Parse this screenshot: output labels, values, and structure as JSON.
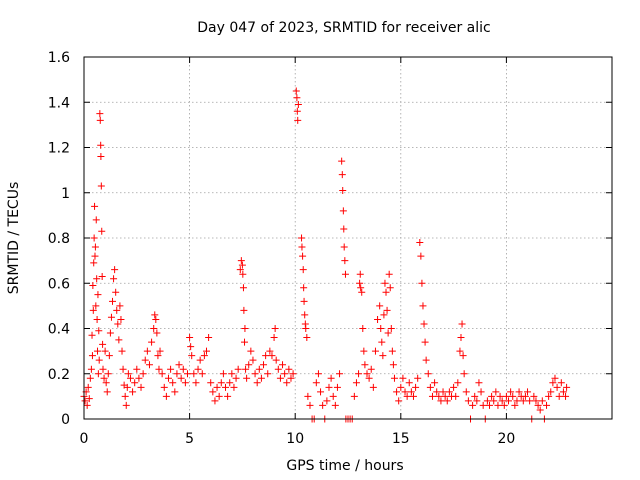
{
  "chart_data": {
    "type": "scatter",
    "title": "Day 047 of 2023, SRMTID for receiver alic",
    "xlabel": "GPS time / hours",
    "ylabel": "SRMTID / TECUs",
    "xlim": [
      0,
      25
    ],
    "ylim": [
      0,
      1.6
    ],
    "x_ticks": [
      0,
      5,
      10,
      15,
      20
    ],
    "x_tick_labels": [
      "0",
      "5",
      "10",
      "15",
      "20"
    ],
    "y_ticks": [
      0,
      0.2,
      0.4,
      0.6,
      0.8,
      1.0,
      1.2,
      1.4,
      1.6
    ],
    "y_tick_labels": [
      "0",
      "0.2",
      "0.4",
      "0.6",
      "0.8",
      "1",
      "1.2",
      "1.4",
      "1.6"
    ],
    "grid": true,
    "marker": "plus",
    "marker_color": "#ff0000",
    "series": [
      {
        "name": "SRMTID",
        "points": [
          [
            0.0,
            0.1
          ],
          [
            0.05,
            0.08
          ],
          [
            0.1,
            0.12
          ],
          [
            0.15,
            0.06
          ],
          [
            0.2,
            0.14
          ],
          [
            0.25,
            0.09
          ],
          [
            0.3,
            0.18
          ],
          [
            0.35,
            0.22
          ],
          [
            0.38,
            0.37
          ],
          [
            0.4,
            0.28
          ],
          [
            0.42,
            0.59
          ],
          [
            0.44,
            0.48
          ],
          [
            0.46,
            0.69
          ],
          [
            0.48,
            0.8
          ],
          [
            0.5,
            0.94
          ],
          [
            0.52,
            0.72
          ],
          [
            0.54,
            0.76
          ],
          [
            0.56,
            0.5
          ],
          [
            0.58,
            0.88
          ],
          [
            0.6,
            0.62
          ],
          [
            0.62,
            0.44
          ],
          [
            0.64,
            0.3
          ],
          [
            0.66,
            0.55
          ],
          [
            0.68,
            0.2
          ],
          [
            0.7,
            0.39
          ],
          [
            0.72,
            0.26
          ],
          [
            0.75,
            1.35
          ],
          [
            0.77,
            1.32
          ],
          [
            0.79,
            1.21
          ],
          [
            0.8,
            1.16
          ],
          [
            0.82,
            1.03
          ],
          [
            0.84,
            0.83
          ],
          [
            0.86,
            0.63
          ],
          [
            0.88,
            0.33
          ],
          [
            0.9,
            0.22
          ],
          [
            0.95,
            0.18
          ],
          [
            1.0,
            0.3
          ],
          [
            1.05,
            0.16
          ],
          [
            1.1,
            0.12
          ],
          [
            1.15,
            0.2
          ],
          [
            1.2,
            0.28
          ],
          [
            1.25,
            0.38
          ],
          [
            1.3,
            0.45
          ],
          [
            1.35,
            0.52
          ],
          [
            1.4,
            0.62
          ],
          [
            1.45,
            0.66
          ],
          [
            1.5,
            0.56
          ],
          [
            1.55,
            0.48
          ],
          [
            1.6,
            0.42
          ],
          [
            1.65,
            0.35
          ],
          [
            1.7,
            0.5
          ],
          [
            1.75,
            0.44
          ],
          [
            1.8,
            0.3
          ],
          [
            1.85,
            0.22
          ],
          [
            1.9,
            0.15
          ],
          [
            1.95,
            0.1
          ],
          [
            2.0,
            0.06
          ],
          [
            2.05,
            0.14
          ],
          [
            2.1,
            0.2
          ],
          [
            2.2,
            0.18
          ],
          [
            2.3,
            0.12
          ],
          [
            2.4,
            0.16
          ],
          [
            2.5,
            0.22
          ],
          [
            2.6,
            0.18
          ],
          [
            2.7,
            0.14
          ],
          [
            2.8,
            0.2
          ],
          [
            2.9,
            0.26
          ],
          [
            3.0,
            0.3
          ],
          [
            3.1,
            0.24
          ],
          [
            3.2,
            0.34
          ],
          [
            3.3,
            0.4
          ],
          [
            3.35,
            0.46
          ],
          [
            3.4,
            0.44
          ],
          [
            3.45,
            0.38
          ],
          [
            3.5,
            0.28
          ],
          [
            3.55,
            0.22
          ],
          [
            3.6,
            0.3
          ],
          [
            3.7,
            0.2
          ],
          [
            3.8,
            0.14
          ],
          [
            3.9,
            0.1
          ],
          [
            4.0,
            0.18
          ],
          [
            4.1,
            0.22
          ],
          [
            4.2,
            0.16
          ],
          [
            4.3,
            0.12
          ],
          [
            4.4,
            0.2
          ],
          [
            4.5,
            0.24
          ],
          [
            4.6,
            0.18
          ],
          [
            4.7,
            0.22
          ],
          [
            4.8,
            0.16
          ],
          [
            4.9,
            0.2
          ],
          [
            5.0,
            0.36
          ],
          [
            5.05,
            0.32
          ],
          [
            5.1,
            0.28
          ],
          [
            5.2,
            0.2
          ],
          [
            5.3,
            0.16
          ],
          [
            5.4,
            0.22
          ],
          [
            5.5,
            0.26
          ],
          [
            5.6,
            0.2
          ],
          [
            5.7,
            0.28
          ],
          [
            5.8,
            0.3
          ],
          [
            5.9,
            0.36
          ],
          [
            6.0,
            0.16
          ],
          [
            6.1,
            0.12
          ],
          [
            6.2,
            0.08
          ],
          [
            6.3,
            0.14
          ],
          [
            6.4,
            0.1
          ],
          [
            6.5,
            0.16
          ],
          [
            6.6,
            0.2
          ],
          [
            6.7,
            0.14
          ],
          [
            6.8,
            0.1
          ],
          [
            6.9,
            0.16
          ],
          [
            7.0,
            0.2
          ],
          [
            7.1,
            0.14
          ],
          [
            7.2,
            0.18
          ],
          [
            7.3,
            0.22
          ],
          [
            7.4,
            0.66
          ],
          [
            7.45,
            0.7
          ],
          [
            7.5,
            0.68
          ],
          [
            7.52,
            0.64
          ],
          [
            7.55,
            0.58
          ],
          [
            7.57,
            0.48
          ],
          [
            7.6,
            0.34
          ],
          [
            7.62,
            0.4
          ],
          [
            7.65,
            0.22
          ],
          [
            7.7,
            0.18
          ],
          [
            7.8,
            0.24
          ],
          [
            7.9,
            0.3
          ],
          [
            8.0,
            0.26
          ],
          [
            8.1,
            0.2
          ],
          [
            8.2,
            0.16
          ],
          [
            8.3,
            0.22
          ],
          [
            8.4,
            0.18
          ],
          [
            8.5,
            0.24
          ],
          [
            8.6,
            0.28
          ],
          [
            8.7,
            0.2
          ],
          [
            8.8,
            0.3
          ],
          [
            8.9,
            0.28
          ],
          [
            9.0,
            0.36
          ],
          [
            9.05,
            0.4
          ],
          [
            9.1,
            0.26
          ],
          [
            9.2,
            0.22
          ],
          [
            9.3,
            0.18
          ],
          [
            9.4,
            0.24
          ],
          [
            9.5,
            0.2
          ],
          [
            9.6,
            0.16
          ],
          [
            9.7,
            0.22
          ],
          [
            9.8,
            0.18
          ],
          [
            9.9,
            0.2
          ],
          [
            10.05,
            1.45
          ],
          [
            10.08,
            1.42
          ],
          [
            10.1,
            1.36
          ],
          [
            10.12,
            1.32
          ],
          [
            10.15,
            1.39
          ],
          [
            10.3,
            0.8
          ],
          [
            10.32,
            0.76
          ],
          [
            10.35,
            0.72
          ],
          [
            10.38,
            0.66
          ],
          [
            10.4,
            0.58
          ],
          [
            10.42,
            0.52
          ],
          [
            10.45,
            0.46
          ],
          [
            10.48,
            0.42
          ],
          [
            10.5,
            0.4
          ],
          [
            10.55,
            0.36
          ],
          [
            10.6,
            0.1
          ],
          [
            10.7,
            0.06
          ],
          [
            10.8,
            0.0
          ],
          [
            10.9,
            0.0
          ],
          [
            11.0,
            0.16
          ],
          [
            11.1,
            0.2
          ],
          [
            11.2,
            0.12
          ],
          [
            11.3,
            0.06
          ],
          [
            11.4,
            0.0
          ],
          [
            11.5,
            0.08
          ],
          [
            11.6,
            0.14
          ],
          [
            11.7,
            0.18
          ],
          [
            11.8,
            0.1
          ],
          [
            11.9,
            0.06
          ],
          [
            12.0,
            0.14
          ],
          [
            12.1,
            0.2
          ],
          [
            12.2,
            1.14
          ],
          [
            12.23,
            1.08
          ],
          [
            12.25,
            1.01
          ],
          [
            12.28,
            0.92
          ],
          [
            12.3,
            0.84
          ],
          [
            12.32,
            0.76
          ],
          [
            12.35,
            0.7
          ],
          [
            12.38,
            0.64
          ],
          [
            12.4,
            0.0
          ],
          [
            12.5,
            0.0
          ],
          [
            12.6,
            0.0
          ],
          [
            12.7,
            0.0
          ],
          [
            12.8,
            0.1
          ],
          [
            12.9,
            0.16
          ],
          [
            13.0,
            0.2
          ],
          [
            13.05,
            0.6
          ],
          [
            13.08,
            0.64
          ],
          [
            13.1,
            0.58
          ],
          [
            13.15,
            0.56
          ],
          [
            13.2,
            0.4
          ],
          [
            13.25,
            0.3
          ],
          [
            13.3,
            0.24
          ],
          [
            13.4,
            0.2
          ],
          [
            13.5,
            0.18
          ],
          [
            13.6,
            0.22
          ],
          [
            13.7,
            0.14
          ],
          [
            13.8,
            0.3
          ],
          [
            13.9,
            0.44
          ],
          [
            14.0,
            0.5
          ],
          [
            14.05,
            0.4
          ],
          [
            14.1,
            0.34
          ],
          [
            14.15,
            0.28
          ],
          [
            14.2,
            0.46
          ],
          [
            14.25,
            0.6
          ],
          [
            14.3,
            0.56
          ],
          [
            14.35,
            0.48
          ],
          [
            14.4,
            0.38
          ],
          [
            14.45,
            0.64
          ],
          [
            14.5,
            0.58
          ],
          [
            14.55,
            0.4
          ],
          [
            14.6,
            0.3
          ],
          [
            14.65,
            0.24
          ],
          [
            14.7,
            0.18
          ],
          [
            14.8,
            0.12
          ],
          [
            14.9,
            0.08
          ],
          [
            15.0,
            0.14
          ],
          [
            15.1,
            0.18
          ],
          [
            15.2,
            0.12
          ],
          [
            15.3,
            0.1
          ],
          [
            15.4,
            0.16
          ],
          [
            15.5,
            0.12
          ],
          [
            15.6,
            0.1
          ],
          [
            15.7,
            0.14
          ],
          [
            15.8,
            0.18
          ],
          [
            15.9,
            0.78
          ],
          [
            15.95,
            0.72
          ],
          [
            16.0,
            0.6
          ],
          [
            16.05,
            0.5
          ],
          [
            16.1,
            0.42
          ],
          [
            16.15,
            0.34
          ],
          [
            16.2,
            0.26
          ],
          [
            16.3,
            0.2
          ],
          [
            16.4,
            0.14
          ],
          [
            16.5,
            0.1
          ],
          [
            16.6,
            0.16
          ],
          [
            16.7,
            0.12
          ],
          [
            16.8,
            0.1
          ],
          [
            16.9,
            0.08
          ],
          [
            17.0,
            0.12
          ],
          [
            17.1,
            0.1
          ],
          [
            17.2,
            0.08
          ],
          [
            17.3,
            0.12
          ],
          [
            17.4,
            0.1
          ],
          [
            17.5,
            0.14
          ],
          [
            17.6,
            0.1
          ],
          [
            17.7,
            0.16
          ],
          [
            17.8,
            0.3
          ],
          [
            17.85,
            0.36
          ],
          [
            17.9,
            0.42
          ],
          [
            17.95,
            0.28
          ],
          [
            18.0,
            0.2
          ],
          [
            18.1,
            0.12
          ],
          [
            18.2,
            0.08
          ],
          [
            18.3,
            0.0
          ],
          [
            18.4,
            0.06
          ],
          [
            18.5,
            0.1
          ],
          [
            18.6,
            0.08
          ],
          [
            18.7,
            0.16
          ],
          [
            18.8,
            0.12
          ],
          [
            18.9,
            0.06
          ],
          [
            19.0,
            0.0
          ],
          [
            19.1,
            0.08
          ],
          [
            19.2,
            0.06
          ],
          [
            19.3,
            0.1
          ],
          [
            19.4,
            0.08
          ],
          [
            19.5,
            0.12
          ],
          [
            19.6,
            0.06
          ],
          [
            19.7,
            0.1
          ],
          [
            19.8,
            0.08
          ],
          [
            19.9,
            0.06
          ],
          [
            20.0,
            0.1
          ],
          [
            20.1,
            0.08
          ],
          [
            20.2,
            0.12
          ],
          [
            20.3,
            0.1
          ],
          [
            20.4,
            0.06
          ],
          [
            20.5,
            0.08
          ],
          [
            20.6,
            0.12
          ],
          [
            20.7,
            0.1
          ],
          [
            20.8,
            0.08
          ],
          [
            20.9,
            0.1
          ],
          [
            21.0,
            0.12
          ],
          [
            21.1,
            0.08
          ],
          [
            21.2,
            0.0
          ],
          [
            21.3,
            0.1
          ],
          [
            21.4,
            0.08
          ],
          [
            21.5,
            0.06
          ],
          [
            21.6,
            0.04
          ],
          [
            21.7,
            0.08
          ],
          [
            21.8,
            0.0
          ],
          [
            21.9,
            0.06
          ],
          [
            22.0,
            0.1
          ],
          [
            22.1,
            0.12
          ],
          [
            22.2,
            0.16
          ],
          [
            22.3,
            0.18
          ],
          [
            22.4,
            0.14
          ],
          [
            22.5,
            0.1
          ],
          [
            22.6,
            0.16
          ],
          [
            22.7,
            0.12
          ],
          [
            22.8,
            0.1
          ],
          [
            22.85,
            0.14
          ]
        ]
      }
    ]
  }
}
